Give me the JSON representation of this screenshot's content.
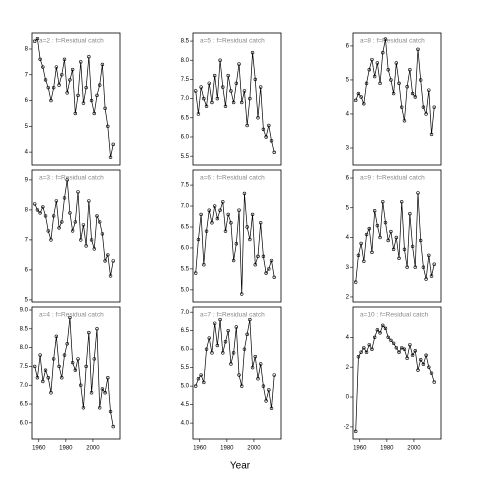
{
  "chart_data": [
    {
      "type": "line",
      "title": "a=2 : f=Residual catch",
      "x": [
        1957,
        1959,
        1961,
        1963,
        1965,
        1967,
        1969,
        1971,
        1973,
        1975,
        1977,
        1979,
        1981,
        1983,
        1985,
        1987,
        1989,
        1991,
        1993,
        1995,
        1997,
        1999,
        2001,
        2003,
        2005,
        2007,
        2009,
        2011,
        2013,
        2015
      ],
      "values": [
        8.3,
        8.4,
        7.6,
        7.3,
        6.8,
        6.5,
        6.0,
        6.5,
        7.3,
        6.6,
        7.0,
        7.6,
        6.3,
        6.8,
        7.2,
        5.5,
        6.2,
        7.5,
        5.9,
        6.5,
        7.7,
        6.0,
        5.5,
        6.2,
        6.6,
        7.4,
        5.7,
        5.0,
        3.8,
        4.3
      ],
      "xlim": [
        1955,
        2020
      ],
      "ylim": [
        3.5,
        8.62
      ],
      "yticks": [
        4,
        5,
        6,
        7,
        8
      ],
      "color": "#000000"
    },
    {
      "type": "line",
      "title": "a=5 : f=Residual catch",
      "x": [
        1957,
        1959,
        1961,
        1963,
        1965,
        1967,
        1969,
        1971,
        1973,
        1975,
        1977,
        1979,
        1981,
        1983,
        1985,
        1987,
        1989,
        1991,
        1993,
        1995,
        1997,
        1999,
        2001,
        2003,
        2005,
        2007,
        2009,
        2011,
        2013,
        2015
      ],
      "values": [
        7.2,
        6.6,
        7.3,
        7.0,
        6.8,
        7.4,
        6.9,
        7.6,
        7.0,
        8.0,
        7.3,
        6.8,
        7.6,
        7.2,
        6.9,
        7.4,
        7.9,
        6.9,
        7.2,
        6.3,
        7.0,
        8.2,
        7.5,
        6.5,
        7.3,
        6.2,
        6.0,
        6.3,
        5.9,
        5.6
      ],
      "xlim": [
        1955,
        2020
      ],
      "ylim": [
        5.27,
        8.71
      ],
      "yticks": [
        5.5,
        {
          "value": 6,
          "label": "6.0"
        },
        6.5,
        {
          "value": 7,
          "label": "7.0"
        },
        7.5,
        {
          "value": 8,
          "label": "8.0"
        },
        8.5
      ],
      "color": "#000000"
    },
    {
      "type": "line",
      "title": "a=8 : f=Residual catch",
      "x": [
        1957,
        1959,
        1961,
        1963,
        1965,
        1967,
        1969,
        1971,
        1973,
        1975,
        1977,
        1979,
        1981,
        1983,
        1985,
        1987,
        1989,
        1991,
        1993,
        1995,
        1997,
        1999,
        2001,
        2003,
        2005,
        2007,
        2009,
        2011,
        2013,
        2015
      ],
      "values": [
        4.4,
        4.6,
        4.5,
        4.3,
        4.9,
        5.3,
        5.6,
        5.1,
        5.5,
        4.9,
        5.8,
        6.2,
        5.3,
        5.0,
        4.6,
        5.5,
        4.9,
        4.2,
        3.8,
        4.8,
        5.3,
        4.6,
        4.5,
        5.9,
        5.0,
        4.2,
        4.0,
        4.7,
        3.4,
        4.2
      ],
      "xlim": [
        1955,
        2020
      ],
      "ylim": [
        2.5,
        6.38
      ],
      "yticks": [
        3,
        4,
        5,
        6
      ],
      "color": "#000000"
    },
    {
      "type": "line",
      "title": "a=3 : f=Residual catch",
      "x": [
        1957,
        1959,
        1961,
        1963,
        1965,
        1967,
        1969,
        1971,
        1973,
        1975,
        1977,
        1979,
        1981,
        1983,
        1985,
        1987,
        1989,
        1991,
        1993,
        1995,
        1997,
        1999,
        2001,
        2003,
        2005,
        2007,
        2009,
        2011,
        2013,
        2015
      ],
      "values": [
        8.2,
        8.0,
        7.9,
        8.1,
        7.8,
        7.3,
        7.0,
        7.8,
        8.3,
        7.4,
        7.6,
        8.4,
        9.0,
        7.9,
        7.3,
        7.6,
        8.6,
        7.0,
        7.5,
        6.8,
        8.3,
        7.0,
        6.7,
        7.8,
        7.6,
        7.2,
        6.3,
        6.5,
        5.8,
        6.3
      ],
      "xlim": [
        1955,
        2020
      ],
      "ylim": [
        4.93,
        9.33
      ],
      "yticks": [
        5,
        6,
        7,
        8,
        9
      ],
      "color": "#000000"
    },
    {
      "type": "line",
      "title": "a=6 : f=Residual catch",
      "x": [
        1957,
        1959,
        1961,
        1963,
        1965,
        1967,
        1969,
        1971,
        1973,
        1975,
        1977,
        1979,
        1981,
        1983,
        1985,
        1987,
        1989,
        1991,
        1993,
        1995,
        1997,
        1999,
        2001,
        2003,
        2005,
        2007,
        2009,
        2011,
        2013,
        2015
      ],
      "values": [
        5.4,
        6.2,
        6.8,
        5.6,
        6.4,
        6.9,
        6.6,
        7.0,
        6.7,
        6.9,
        7.1,
        6.4,
        6.8,
        6.6,
        5.7,
        6.1,
        6.9,
        4.9,
        7.3,
        6.5,
        6.2,
        6.8,
        5.6,
        5.8,
        6.6,
        5.8,
        5.4,
        5.5,
        5.7,
        5.3
      ],
      "xlim": [
        1955,
        2020
      ],
      "ylim": [
        4.71,
        7.86
      ],
      "yticks": [
        {
          "value": 5,
          "label": "5.0"
        },
        5.5,
        {
          "value": 6,
          "label": "6.0"
        },
        6.5,
        {
          "value": 7,
          "label": "7.0"
        },
        7.5
      ],
      "color": "#000000"
    },
    {
      "type": "line",
      "title": "a=9 : f=Residual catch",
      "x": [
        1957,
        1959,
        1961,
        1963,
        1965,
        1967,
        1969,
        1971,
        1973,
        1975,
        1977,
        1979,
        1981,
        1983,
        1985,
        1987,
        1989,
        1991,
        1993,
        1995,
        1997,
        1999,
        2001,
        2003,
        2005,
        2007,
        2009,
        2011,
        2013,
        2015
      ],
      "values": [
        2.5,
        3.4,
        3.8,
        3.2,
        4.1,
        4.3,
        3.5,
        4.9,
        4.4,
        4.0,
        5.2,
        4.5,
        3.9,
        4.2,
        3.6,
        4.0,
        3.3,
        5.2,
        3.6,
        3.0,
        4.8,
        3.7,
        3.0,
        5.5,
        3.9,
        3.0,
        2.6,
        3.4,
        2.7,
        3.1
      ],
      "xlim": [
        1955,
        2020
      ],
      "ylim": [
        1.83,
        6.27
      ],
      "yticks": [
        2,
        3,
        4,
        5,
        6
      ],
      "color": "#000000"
    },
    {
      "type": "line",
      "title": "a=4 : f=Residual catch",
      "x": [
        1957,
        1959,
        1961,
        1963,
        1965,
        1967,
        1969,
        1971,
        1973,
        1975,
        1977,
        1979,
        1981,
        1983,
        1985,
        1987,
        1989,
        1991,
        1993,
        1995,
        1997,
        1999,
        2001,
        2003,
        2005,
        2007,
        2009,
        2011,
        2013,
        2015
      ],
      "values": [
        7.5,
        7.2,
        7.8,
        7.1,
        7.4,
        7.2,
        6.8,
        7.7,
        8.3,
        7.5,
        7.2,
        7.8,
        8.1,
        8.8,
        7.6,
        7.4,
        7.7,
        7.0,
        6.4,
        7.5,
        8.4,
        6.8,
        7.7,
        8.5,
        6.4,
        6.9,
        6.8,
        7.2,
        6.3,
        5.9
      ],
      "xlim": [
        1955,
        2020
      ],
      "ylim": [
        5.57,
        9.08
      ],
      "yticks": [
        {
          "value": 6,
          "label": "6.0"
        },
        6.5,
        {
          "value": 7,
          "label": "7.0"
        },
        7.5,
        {
          "value": 8,
          "label": "8.0"
        },
        8.5,
        {
          "value": 9,
          "label": "9.0"
        }
      ],
      "xticks": [
        1960,
        1980,
        2000
      ],
      "color": "#000000"
    },
    {
      "type": "line",
      "title": "a=7 : f=Residual catch",
      "x_label": "Year",
      "x": [
        1957,
        1959,
        1961,
        1963,
        1965,
        1967,
        1969,
        1971,
        1973,
        1975,
        1977,
        1979,
        1981,
        1983,
        1985,
        1987,
        1989,
        1991,
        1993,
        1995,
        1997,
        1999,
        2001,
        2003,
        2005,
        2007,
        2009,
        2011,
        2013,
        2015
      ],
      "values": [
        5.0,
        5.2,
        5.3,
        5.1,
        6.0,
        6.3,
        5.9,
        6.7,
        6.1,
        6.8,
        5.9,
        6.2,
        6.5,
        5.6,
        5.9,
        6.6,
        5.3,
        5.0,
        6.0,
        6.4,
        6.8,
        5.5,
        5.8,
        5.2,
        5.6,
        5.0,
        4.6,
        4.9,
        4.4,
        5.3
      ],
      "xlim": [
        1955,
        2020
      ],
      "ylim": [
        3.57,
        7.14
      ],
      "yticks": [
        {
          "value": 4,
          "label": "4.0"
        },
        4.5,
        {
          "value": 5,
          "label": "5.0"
        },
        5.5,
        {
          "value": 6,
          "label": "6.0"
        },
        6.5,
        {
          "value": 7,
          "label": "7.0"
        }
      ],
      "xticks": [
        1960,
        1980,
        2000
      ],
      "color": "#000000"
    },
    {
      "type": "line",
      "title": "a=10 : f=Residual catch",
      "x": [
        1957,
        1959,
        1961,
        1963,
        1965,
        1967,
        1969,
        1971,
        1973,
        1975,
        1977,
        1979,
        1981,
        1983,
        1985,
        1987,
        1989,
        1991,
        1993,
        1995,
        1997,
        1999,
        2001,
        2003,
        2005,
        2007,
        2009,
        2011,
        2013,
        2015
      ],
      "values": [
        -2.3,
        2.7,
        3.0,
        3.3,
        3.0,
        3.5,
        3.2,
        4.0,
        4.5,
        4.3,
        4.8,
        4.6,
        4.0,
        3.8,
        3.6,
        3.3,
        3.0,
        3.3,
        3.2,
        2.6,
        3.5,
        2.8,
        3.1,
        1.8,
        2.5,
        2.2,
        2.8,
        2.0,
        1.6,
        1.0
      ],
      "xlim": [
        1955,
        2020
      ],
      "ylim": [
        -2.81,
        6.03
      ],
      "yticks": [
        -2,
        0,
        2,
        4
      ],
      "xticks": [
        1960,
        1980,
        2000
      ],
      "color": "#000000"
    }
  ]
}
